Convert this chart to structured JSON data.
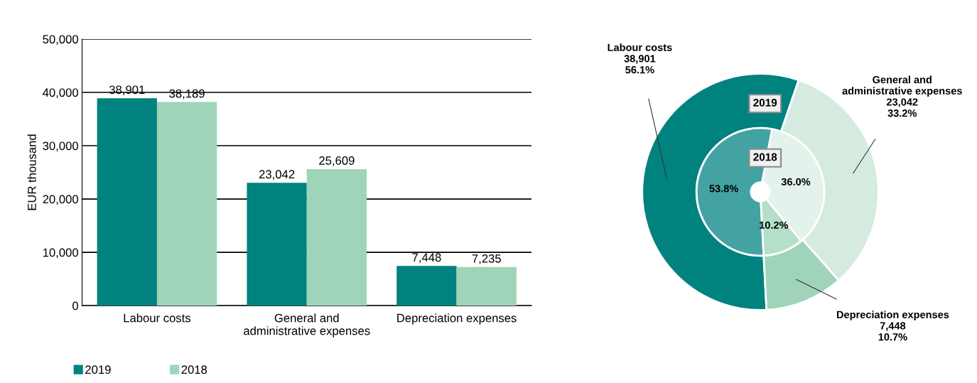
{
  "chart_data": [
    {
      "type": "bar",
      "ylabel": "EUR thousand",
      "categories": [
        "Labour costs",
        "General and\nadministrative expenses",
        "Depreciation expenses"
      ],
      "series": [
        {
          "name": "2019",
          "color": "#00827f",
          "values": [
            38901,
            23042,
            7448
          ],
          "value_labels": [
            "38,901",
            "23,042",
            "7,448"
          ]
        },
        {
          "name": "2018",
          "color": "#a0d4b9",
          "values": [
            38189,
            25609,
            7235
          ],
          "value_labels": [
            "38,189",
            "25,609",
            "7,235"
          ]
        }
      ],
      "ylim": [
        0,
        50000
      ],
      "yticks": [
        0,
        {
          "value": 10000,
          "label": "10,000"
        },
        {
          "value": 20000,
          "label": "20,000"
        },
        {
          "value": 30000,
          "label": "30,000"
        },
        {
          "value": 40000,
          "label": "40,000"
        },
        {
          "value": 50000,
          "label": "50,000"
        }
      ],
      "grid": "y",
      "legend": "bottom left"
    },
    {
      "type": "donut",
      "categories": [
        "Labour costs",
        "General and\nadministrative expenses",
        "Depreciation expenses"
      ],
      "series": [
        {
          "name": "2019",
          "colors": [
            "#00827f",
            "#d5ebe0",
            "#a0d4b9"
          ],
          "values": [
            56.1,
            33.2,
            10.7
          ],
          "value_labels": [
            "38,901\n56.1%",
            "23,042\n33.2%",
            "7,448\n10.7%"
          ]
        },
        {
          "name": "2018",
          "colors": [
            "#43a3a3",
            "#e3f2ea",
            "#b5dfc9"
          ],
          "values": [
            53.8,
            36.0,
            10.2
          ],
          "value_labels": [
            "53.8%",
            "36.0%",
            "10.2%"
          ]
        }
      ]
    }
  ]
}
